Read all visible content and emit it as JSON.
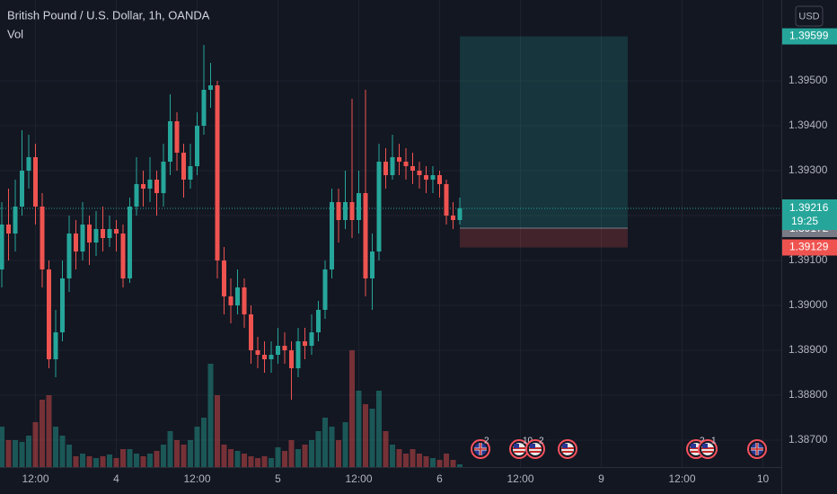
{
  "chart_data": {
    "type": "candlestick",
    "title": "British Pound / U.S. Dollar, 1h, OANDA",
    "subtitle": "Vol",
    "currency": "USD",
    "up_color": "#26a69a",
    "down_color": "#ef5350",
    "grid": true,
    "categories": [
      null,
      null,
      null,
      null,
      null,
      "12:00",
      null,
      null,
      null,
      null,
      null,
      null,
      null,
      null,
      null,
      null,
      null,
      "4",
      null,
      null,
      null,
      null,
      null,
      null,
      null,
      null,
      null,
      null,
      null,
      "12:00",
      null,
      null,
      null,
      null,
      null,
      null,
      null,
      null,
      null,
      null,
      null,
      "5",
      null,
      null,
      null,
      null,
      null,
      null,
      null,
      null,
      null,
      null,
      null,
      "12:00",
      null,
      null,
      null,
      null,
      null,
      null,
      null,
      null,
      null,
      null,
      null,
      "6",
      null,
      null,
      null,
      null,
      null,
      null,
      null,
      null,
      null,
      null,
      null,
      "12:00",
      null,
      null,
      null,
      null,
      null,
      null,
      null,
      null,
      null,
      null,
      null,
      "9",
      null,
      null,
      null,
      null,
      null,
      null,
      null,
      null,
      null,
      null,
      null,
      "12:00",
      null,
      null,
      null,
      null,
      null,
      null,
      null,
      null,
      null,
      null,
      null,
      "10",
      null,
      null
    ],
    "open": [
      1.3908,
      1.3918,
      1.3916,
      1.3922,
      1.393,
      1.3933,
      1.3922,
      1.3908,
      1.3888,
      1.3894,
      1.3906,
      1.3916,
      1.3912,
      1.3918,
      1.3914,
      1.3917,
      1.3915,
      1.3917,
      1.3916,
      1.3906,
      1.3922,
      1.3927,
      1.3926,
      1.3928,
      1.3925,
      1.3932,
      1.3941,
      1.3934,
      1.3928,
      1.3931,
      1.394,
      1.3948,
      1.3949,
      1.391,
      1.3902,
      1.39,
      1.3904,
      1.3898,
      1.389,
      1.3889,
      1.3888,
      1.3889,
      1.3891,
      1.389,
      1.3886,
      1.3892,
      1.3891,
      1.3894,
      1.3899,
      1.3908,
      1.3923,
      1.3919,
      1.3923,
      1.3919,
      1.3925,
      1.3906,
      1.3912,
      1.3932,
      1.3929,
      1.3933,
      1.3932,
      1.3931,
      1.393,
      1.3929,
      1.3928,
      1.3929,
      1.3927,
      1.392,
      1.3919,
      null,
      null,
      null,
      null,
      null,
      null,
      null,
      null,
      null,
      null,
      null,
      null,
      null,
      null,
      null,
      null,
      null,
      null,
      null,
      null,
      null,
      null,
      null,
      null,
      null,
      null,
      null,
      null,
      null,
      null,
      null,
      null,
      null,
      null,
      null,
      null,
      null,
      null,
      null,
      null,
      null,
      null,
      null,
      null,
      null,
      null,
      null
    ],
    "high": [
      1.3923,
      1.3926,
      1.3928,
      1.3939,
      1.3938,
      1.3936,
      1.3925,
      1.391,
      1.3899,
      1.391,
      1.392,
      1.3919,
      1.3923,
      1.392,
      1.3921,
      1.3922,
      1.392,
      1.3919,
      1.3918,
      1.3924,
      1.3933,
      1.393,
      1.3933,
      1.393,
      1.3936,
      1.3947,
      1.3943,
      1.3936,
      1.3936,
      1.3943,
      1.3958,
      1.3954,
      1.395,
      1.3913,
      1.3906,
      1.3908,
      1.3906,
      1.39,
      1.3893,
      1.3892,
      1.3892,
      1.3895,
      1.3894,
      1.3892,
      1.3895,
      1.3895,
      1.3898,
      1.3901,
      1.391,
      1.3926,
      1.3926,
      1.393,
      1.3946,
      1.393,
      1.3948,
      1.3916,
      1.3936,
      1.3935,
      1.3938,
      1.3936,
      1.3935,
      1.3934,
      1.3932,
      1.3931,
      1.3931,
      1.393,
      1.3928,
      1.3923,
      1.3924,
      null,
      null,
      null,
      null,
      null,
      null,
      null,
      null,
      null,
      null,
      null,
      null,
      null,
      null,
      null,
      null,
      null,
      null,
      null,
      null,
      null,
      null,
      null,
      null,
      null,
      null,
      null,
      null,
      null,
      null,
      null,
      null,
      null,
      null,
      null,
      null,
      null,
      null,
      null,
      null,
      null,
      null,
      null,
      null,
      null,
      null,
      null
    ],
    "low": [
      1.3904,
      1.391,
      1.3912,
      1.392,
      1.3926,
      1.3918,
      1.3904,
      1.3886,
      1.3884,
      1.3892,
      1.3903,
      1.3908,
      1.391,
      1.3909,
      1.3911,
      1.3912,
      1.3913,
      1.3912,
      1.3904,
      1.3905,
      1.392,
      1.3922,
      1.3923,
      1.392,
      1.3922,
      1.3929,
      1.393,
      1.3924,
      1.3926,
      1.3929,
      1.3938,
      1.3944,
      1.3906,
      1.3898,
      1.3896,
      1.3898,
      1.3895,
      1.3887,
      1.3886,
      1.3885,
      1.3885,
      1.3887,
      1.3887,
      1.3879,
      1.3884,
      1.3888,
      1.3889,
      1.3892,
      1.3897,
      1.3906,
      1.3914,
      1.3917,
      1.3915,
      1.3916,
      1.3902,
      1.3899,
      1.391,
      1.3926,
      1.3928,
      1.3929,
      1.3928,
      1.3927,
      1.3926,
      1.3925,
      1.3925,
      1.3924,
      1.3918,
      1.3917,
      1.3918,
      null,
      null,
      null,
      null,
      null,
      null,
      null,
      null,
      null,
      null,
      null,
      null,
      null,
      null,
      null,
      null,
      null,
      null,
      null,
      null,
      null,
      null,
      null,
      null,
      null,
      null,
      null,
      null,
      null,
      null,
      null,
      null,
      null,
      null,
      null,
      null,
      null,
      null,
      null,
      null,
      null,
      null,
      null,
      null,
      null,
      null,
      null
    ],
    "close": [
      1.3918,
      1.3916,
      1.3922,
      1.393,
      1.3933,
      1.3922,
      1.3908,
      1.3888,
      1.3894,
      1.3906,
      1.3916,
      1.3912,
      1.3918,
      1.3914,
      1.3917,
      1.3915,
      1.3917,
      1.3916,
      1.3906,
      1.3922,
      1.3927,
      1.3926,
      1.3928,
      1.3925,
      1.3932,
      1.3941,
      1.3934,
      1.3928,
      1.3931,
      1.394,
      1.3948,
      1.3949,
      1.391,
      1.3902,
      1.39,
      1.3904,
      1.3898,
      1.389,
      1.3889,
      1.3888,
      1.3889,
      1.3891,
      1.389,
      1.3886,
      1.3892,
      1.3891,
      1.3894,
      1.3899,
      1.3908,
      1.3923,
      1.3919,
      1.3923,
      1.3919,
      1.3925,
      1.3906,
      1.3912,
      1.3932,
      1.3929,
      1.3933,
      1.3932,
      1.3931,
      1.393,
      1.3929,
      1.3928,
      1.3929,
      1.3927,
      1.392,
      1.3919,
      1.39216,
      null,
      null,
      null,
      null,
      null,
      null,
      null,
      null,
      null,
      null,
      null,
      null,
      null,
      null,
      null,
      null,
      null,
      null,
      null,
      null,
      null,
      null,
      null,
      null,
      null,
      null,
      null,
      null,
      null,
      null,
      null,
      null,
      null,
      null,
      null,
      null,
      null,
      null,
      null,
      null,
      null,
      null,
      null,
      null,
      null,
      null,
      null
    ],
    "volume": [
      45,
      30,
      30,
      28,
      35,
      50,
      75,
      80,
      45,
      35,
      25,
      12,
      15,
      12,
      10,
      12,
      14,
      10,
      20,
      20,
      15,
      12,
      15,
      18,
      25,
      40,
      30,
      25,
      30,
      45,
      55,
      115,
      80,
      25,
      20,
      18,
      15,
      12,
      10,
      12,
      10,
      22,
      18,
      30,
      20,
      25,
      30,
      40,
      55,
      45,
      30,
      50,
      130,
      85,
      70,
      65,
      85,
      40,
      25,
      20,
      15,
      20,
      15,
      12,
      10,
      8,
      15,
      8,
      3,
      null,
      null,
      null,
      null,
      null,
      null,
      null,
      null,
      null,
      null,
      null,
      null,
      null,
      null,
      null,
      null,
      null,
      null,
      null,
      null,
      null,
      null,
      null,
      null,
      null,
      null,
      null,
      null,
      null,
      null,
      null,
      null,
      null,
      null,
      null,
      null,
      null,
      null,
      null,
      null,
      null,
      null,
      null,
      null,
      null,
      null,
      null
    ],
    "ylim": [
      1.3864,
      1.3968
    ],
    "yticks": [
      {
        "value": 1.387,
        "label": "1.38700"
      },
      {
        "value": 1.388,
        "label": "1.38800"
      },
      {
        "value": 1.389,
        "label": "1.38900"
      },
      {
        "value": 1.39,
        "label": "1.39000"
      },
      {
        "value": 1.391,
        "label": "1.39100"
      },
      {
        "value": 1.392,
        "label": "1.39200"
      },
      {
        "value": 1.393,
        "label": "1.39300"
      },
      {
        "value": 1.394,
        "label": "1.39400"
      },
      {
        "value": 1.395,
        "label": "1.39500"
      }
    ],
    "countdown": "19:25",
    "position": {
      "target": 1.39599,
      "entry": 1.39172,
      "stop": 1.39129
    },
    "event_counts": [
      "2",
      "10",
      "2",
      "2",
      "1"
    ]
  }
}
